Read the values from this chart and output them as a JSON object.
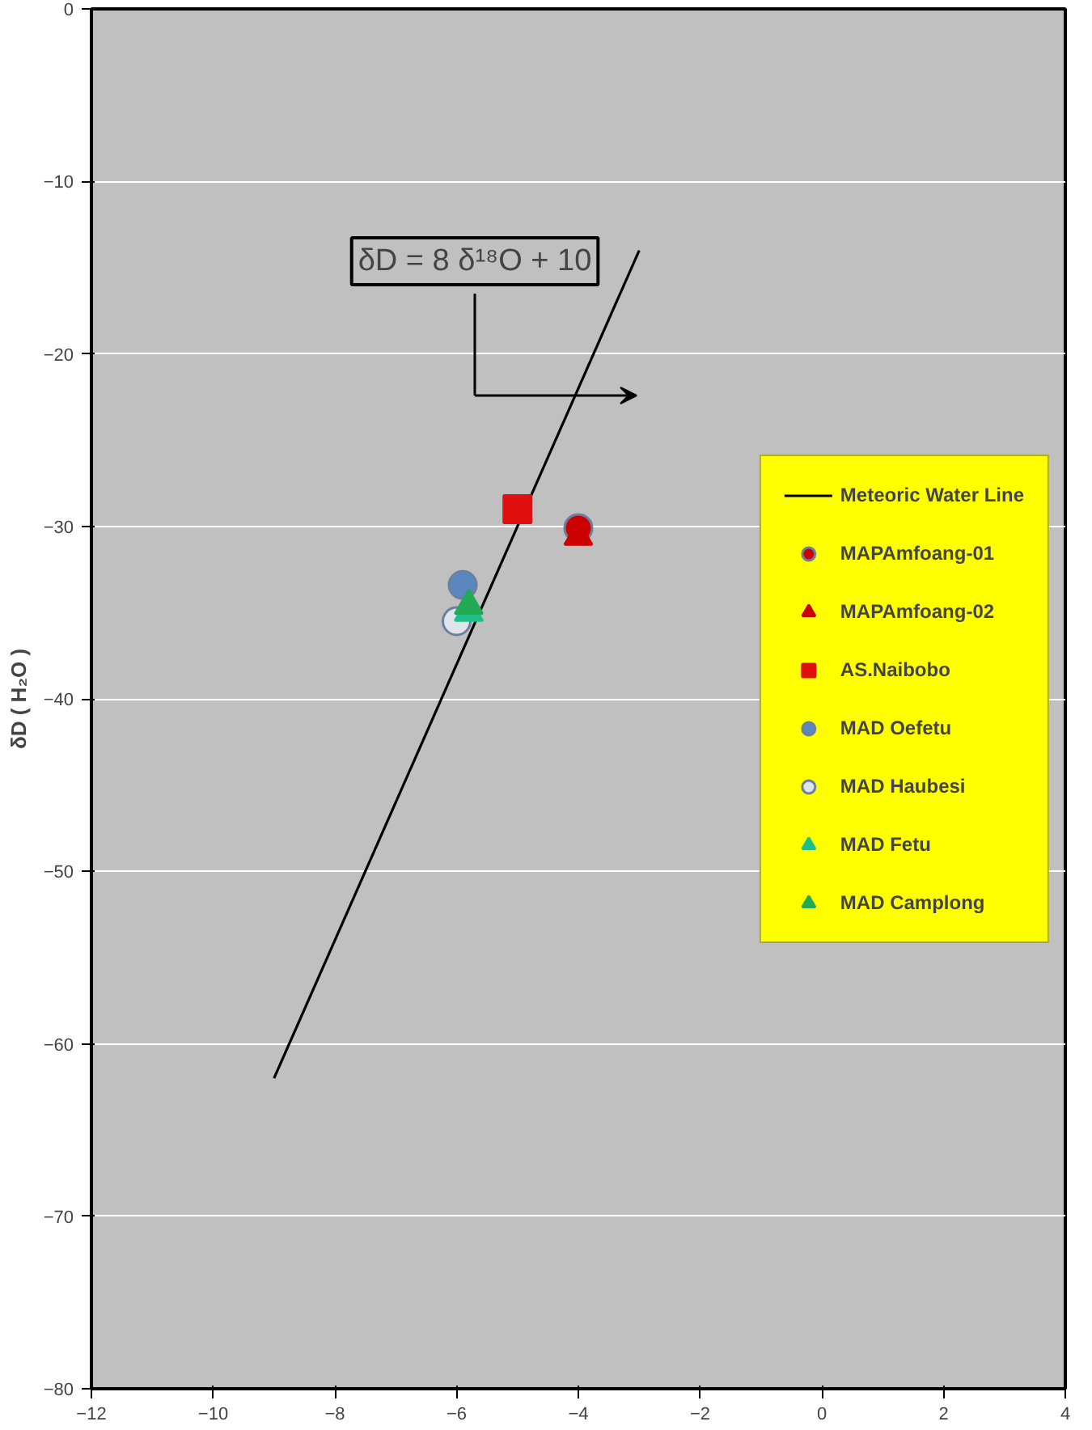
{
  "chart_data": {
    "type": "scatter",
    "ylabel": "δD ( H₂O )",
    "xlim": [
      -12,
      4
    ],
    "ylim": [
      -80,
      0
    ],
    "xticks": [
      -12,
      -10,
      -8,
      -6,
      -4,
      -2,
      0,
      2,
      4
    ],
    "yticks": [
      -80,
      -70,
      -60,
      -50,
      -40,
      -30,
      -20,
      -10,
      0
    ],
    "grid": "y",
    "legend": "right",
    "annotations": [
      "δD = 8 δ¹⁸O + 10"
    ],
    "series": [
      {
        "name": "Meteoric Water Line",
        "type": "line",
        "color": "#000000",
        "x": [
          -9,
          -3
        ],
        "values": [
          -62,
          -14
        ],
        "line_style": "solid"
      },
      {
        "name": "MAPAmfoang-01",
        "color": "#cc0000",
        "x": [
          -4
        ],
        "values": [
          -30.1
        ],
        "marker": "circle"
      },
      {
        "name": "MAPAmfoang-02",
        "color": "#cc0000",
        "x": [
          -4
        ],
        "values": [
          -30.6
        ],
        "marker": "triangle"
      },
      {
        "name": "AS.Naibobo",
        "color": "#e01010",
        "x": [
          -5
        ],
        "values": [
          -29
        ],
        "marker": "square"
      },
      {
        "name": "MAD Oefetu",
        "color": "#5b87c0",
        "x": [
          -5.9
        ],
        "values": [
          -33.4
        ],
        "marker": "circle"
      },
      {
        "name": "MAD Haubesi",
        "color": "#dde4ea",
        "x": [
          -6
        ],
        "values": [
          -35.5
        ],
        "marker": "circle"
      },
      {
        "name": "MAD Fetu",
        "color": "#1fbf8a",
        "x": [
          -5.8
        ],
        "values": [
          -35
        ],
        "marker": "triangle"
      },
      {
        "name": "MAD Camplong",
        "color": "#22aa55",
        "x": [
          -5.8
        ],
        "values": [
          -34.6
        ],
        "marker": "triangle"
      }
    ]
  }
}
